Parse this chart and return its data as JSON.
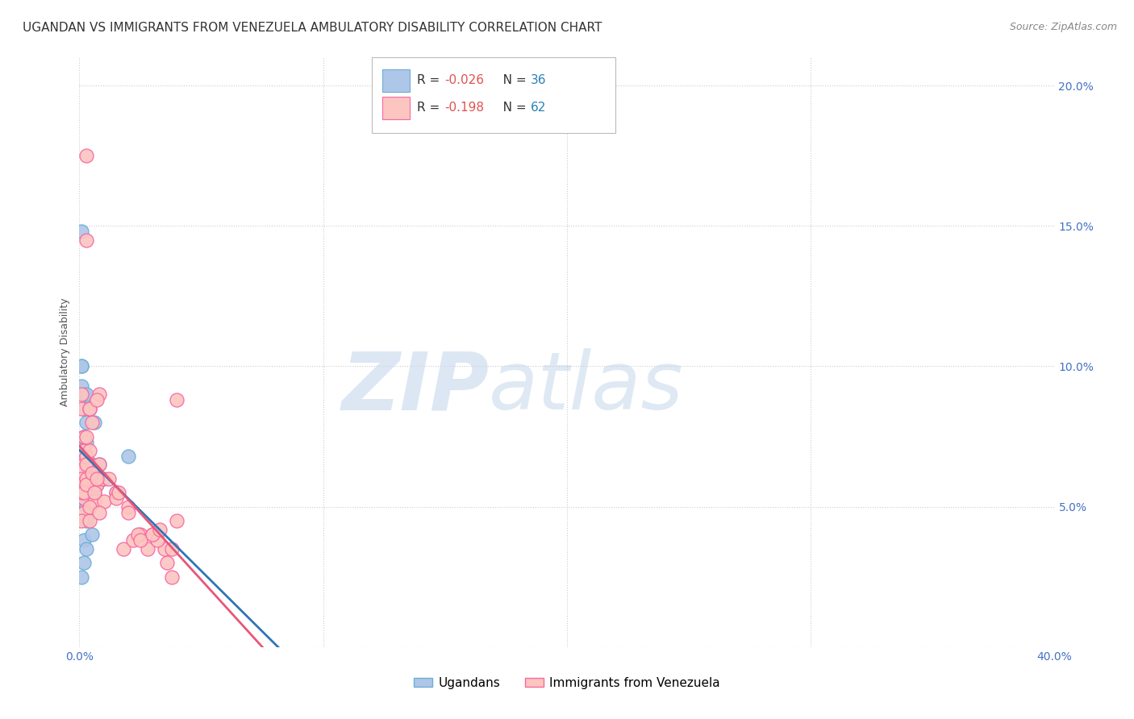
{
  "title": "UGANDAN VS IMMIGRANTS FROM VENEZUELA AMBULATORY DISABILITY CORRELATION CHART",
  "source": "Source: ZipAtlas.com",
  "ylabel": "Ambulatory Disability",
  "watermark_zip": "ZIP",
  "watermark_atlas": "atlas",
  "ugandan": {
    "R": -0.026,
    "N": 36,
    "color": "#aec6e8",
    "color_edge": "#6baed6",
    "label": "Ugandans",
    "x": [
      0.001,
      0.002,
      0.003,
      0.004,
      0.005,
      0.006,
      0.001,
      0.002,
      0.003,
      0.001,
      0.002,
      0.004,
      0.002,
      0.003,
      0.001,
      0.005,
      0.003,
      0.001,
      0.007,
      0.002,
      0.004,
      0.006,
      0.001,
      0.002,
      0.003,
      0.008,
      0.01,
      0.002,
      0.001,
      0.015,
      0.003,
      0.002,
      0.001,
      0.02,
      0.005,
      0.003
    ],
    "y": [
      0.1,
      0.09,
      0.08,
      0.085,
      0.065,
      0.08,
      0.093,
      0.075,
      0.073,
      0.068,
      0.085,
      0.063,
      0.052,
      0.09,
      0.1,
      0.06,
      0.05,
      0.148,
      0.058,
      0.075,
      0.058,
      0.055,
      0.068,
      0.055,
      0.06,
      0.065,
      0.06,
      0.038,
      0.055,
      0.055,
      0.045,
      0.03,
      0.025,
      0.068,
      0.04,
      0.035
    ]
  },
  "venezuela": {
    "R": -0.198,
    "N": 62,
    "color": "#fcc5c0",
    "color_edge": "#f768a1",
    "label": "Immigrants from Venezuela",
    "x": [
      0.001,
      0.002,
      0.003,
      0.001,
      0.004,
      0.005,
      0.002,
      0.003,
      0.006,
      0.007,
      0.002,
      0.003,
      0.004,
      0.001,
      0.005,
      0.008,
      0.003,
      0.001,
      0.002,
      0.004,
      0.006,
      0.009,
      0.002,
      0.001,
      0.003,
      0.001,
      0.002,
      0.007,
      0.003,
      0.001,
      0.01,
      0.004,
      0.008,
      0.015,
      0.003,
      0.005,
      0.012,
      0.02,
      0.007,
      0.004,
      0.025,
      0.006,
      0.018,
      0.03,
      0.004,
      0.022,
      0.035,
      0.008,
      0.028,
      0.04,
      0.015,
      0.032,
      0.024,
      0.038,
      0.016,
      0.02,
      0.025,
      0.03,
      0.033,
      0.036,
      0.038,
      0.04
    ],
    "y": [
      0.09,
      0.065,
      0.175,
      0.085,
      0.085,
      0.06,
      0.07,
      0.145,
      0.06,
      0.058,
      0.075,
      0.075,
      0.065,
      0.063,
      0.08,
      0.09,
      0.068,
      0.06,
      0.053,
      0.085,
      0.052,
      0.06,
      0.048,
      0.058,
      0.06,
      0.055,
      0.055,
      0.088,
      0.065,
      0.045,
      0.052,
      0.07,
      0.065,
      0.055,
      0.058,
      0.062,
      0.06,
      0.05,
      0.06,
      0.045,
      0.04,
      0.055,
      0.035,
      0.04,
      0.05,
      0.038,
      0.035,
      0.048,
      0.035,
      0.045,
      0.053,
      0.038,
      0.04,
      0.025,
      0.055,
      0.048,
      0.038,
      0.04,
      0.042,
      0.03,
      0.035,
      0.088
    ]
  },
  "xlim": [
    0.0,
    0.4
  ],
  "ylim": [
    0.0,
    0.21
  ],
  "yticks": [
    0.0,
    0.05,
    0.1,
    0.15,
    0.2
  ],
  "ytick_labels": [
    "",
    "5.0%",
    "10.0%",
    "15.0%",
    "20.0%"
  ],
  "xticks": [
    0.0,
    0.4
  ],
  "xtick_labels": [
    "0.0%",
    "40.0%"
  ],
  "ugandan_trend_color": "#2e75b6",
  "venezuela_trend_color": "#e8567a",
  "grid_color": "#cccccc",
  "grid_linestyle": "dotted",
  "background_color": "#ffffff",
  "title_fontsize": 11,
  "axis_label_fontsize": 9,
  "tick_fontsize": 10,
  "tick_color": "#4472C4",
  "legend_r_color": "#e74c3c",
  "legend_n_color": "#2980b9"
}
